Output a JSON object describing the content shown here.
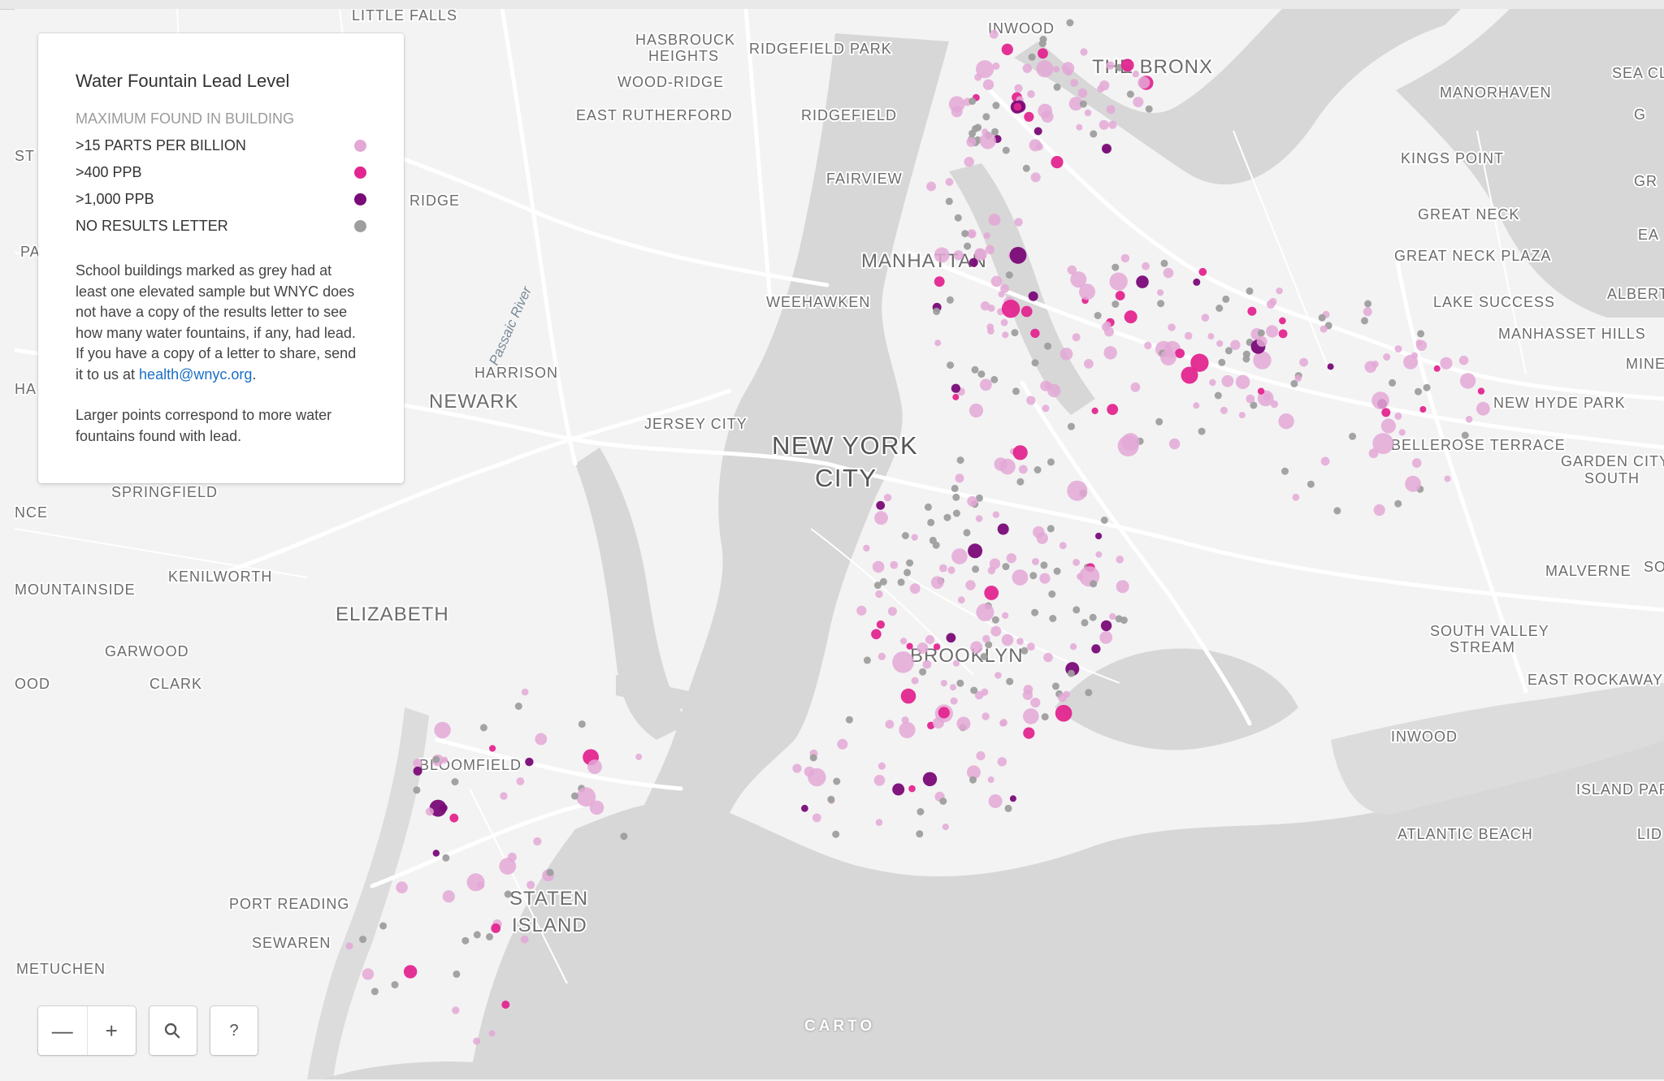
{
  "legend": {
    "title": "Water Fountain Lead Level",
    "subtitle": "MAXIMUM FOUND IN BUILDING",
    "items": [
      {
        "label": ">15 PARTS PER BILLION",
        "color": "#e3a8d6"
      },
      {
        "label": ">400 PPB",
        "color": "#e3268f"
      },
      {
        "label": ">1,000 PPB",
        "color": "#7a0a78"
      },
      {
        "label": "NO RESULTS LETTER",
        "color": "#9e9e9e"
      }
    ],
    "note_text": "School buildings marked as grey had at least one elevated sample but WNYC does not have a copy of the results letter to see how many water fountains, if any, had lead. If you have a copy of a letter to share, send it to us at ",
    "note_link": "health@wnyc.org",
    "note_end": ".",
    "note2": "Larger points correspond to more water fountains found with lead."
  },
  "controls": {
    "zoom_out": "—",
    "zoom_in": "+",
    "search": "⚲",
    "help": "?"
  },
  "attribution": "CARTO",
  "places": {
    "little_falls": "LITTLE FALLS",
    "hasbrouck": "HASBROUCK",
    "heights": "HEIGHTS",
    "ridgefield_park": "RIDGEFIELD PARK",
    "inwood_n": "INWOOD",
    "bronx": "THE BRONX",
    "wood_ridge": "WOOD-RIDGE",
    "east_rutherford": "EAST RUTHERFORD",
    "ridgefield": "RIDGEFIELD",
    "manorhaven": "MANORHAVEN",
    "sea_cliff": "SEA CL",
    "kings_point": "KINGS POINT",
    "fairview": "FAIRVIEW",
    "ridge": "RIDGE",
    "great_neck": "GREAT NECK",
    "manhattan": "MANHATTAN",
    "great_neck_plaza": "GREAT NECK PLAZA",
    "weehawken": "WEEHAWKEN",
    "lake_success": "LAKE SUCCESS",
    "albert": "ALBERT",
    "manhasset_hills": "MANHASSET HILLS",
    "passaic_river": "Passaic River",
    "harrison": "HARRISON",
    "minec": "MINEC",
    "newark": "NEWARK",
    "new_hyde_park": "NEW HYDE PARK",
    "jersey_city": "JERSEY CITY",
    "nyc1": "NEW YORK",
    "nyc2": "CITY",
    "bellerose": "BELLEROSE TERRACE",
    "garden_city_south1": "GARDEN CITY",
    "garden_city_south2": "SOUTH",
    "springfield": "SPRINGFIELD",
    "nce": "NCE",
    "kenilworth": "KENILWORTH",
    "mountainside": "MOUNTAINSIDE",
    "malverne": "MALVERNE",
    "so": "SO",
    "elizabeth": "ELIZABETH",
    "south_valley1": "SOUTH VALLEY",
    "south_valley2": "STREAM",
    "garwood": "GARWOOD",
    "brooklyn": "BROOKLYN",
    "ood": "OOD",
    "clark": "CLARK",
    "east_rockaway": "EAST ROCKAWAY",
    "inwood_s": "INWOOD",
    "bloomfield": "BLOOMFIELD",
    "island_park": "ISLAND PAR",
    "atlantic_beach": "ATLANTIC BEACH",
    "lid": "LID",
    "staten1": "STATEN",
    "staten2": "ISLAND",
    "port_reading": "PORT READING",
    "sewaren": "SEWAREN",
    "metuchen": "METUCHEN",
    "st": "ST",
    "pa": "PA",
    "ha": "HA",
    "gr": "GR",
    "ea": "EA",
    "g": "G"
  },
  "colors": {
    "water": "#d7d7d7",
    "land": "#f3f3f3",
    "road": "#ffffff",
    "light": "#e3a8d6",
    "mid": "#e3268f",
    "dark": "#7a0a78",
    "grey": "#9e9e9e"
  }
}
